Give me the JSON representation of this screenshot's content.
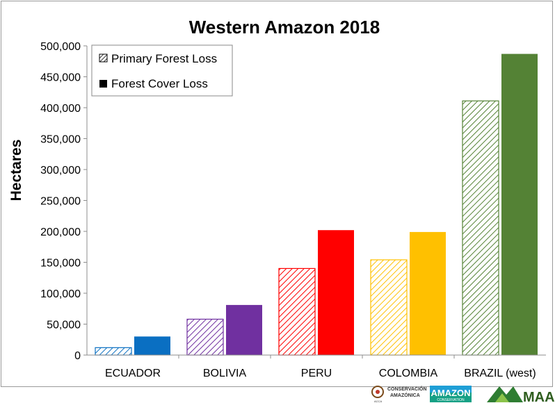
{
  "chart_data": {
    "type": "bar",
    "title": "Western Amazon 2018",
    "ylabel": "Hectares",
    "xlabel": "",
    "ylim": [
      0,
      500000
    ],
    "yticks": [
      0,
      50000,
      100000,
      150000,
      200000,
      250000,
      300000,
      350000,
      400000,
      450000,
      500000
    ],
    "ytick_labels": [
      "0",
      "50,000",
      "100,000",
      "150,000",
      "200,000",
      "250,000",
      "300,000",
      "350,000",
      "400,000",
      "450,000",
      "500,000"
    ],
    "categories": [
      "ECUADOR",
      "BOLIVIA",
      "PERU",
      "COLOMBIA",
      "BRAZIL (west)"
    ],
    "category_colors": [
      "#0a6fc2",
      "#7030a0",
      "#ff0000",
      "#ffc000",
      "#548235"
    ],
    "series": [
      {
        "name": "Primary Forest Loss",
        "pattern": "hatched",
        "values": [
          12000,
          58000,
          140000,
          154000,
          411000
        ]
      },
      {
        "name": "Forest Cover Loss",
        "pattern": "solid",
        "values": [
          30000,
          81000,
          202000,
          199000,
          487000
        ]
      }
    ],
    "legend_position": "top-left",
    "grid": false
  },
  "logos": {
    "aca_line1": "CONSERVACIÓN",
    "aca_line2": "AMAZÓNICA",
    "aca_sub": "ACCA",
    "amazon_line1": "AMAZON",
    "amazon_line2": "CONSERVATION",
    "maap": "MAAP"
  }
}
